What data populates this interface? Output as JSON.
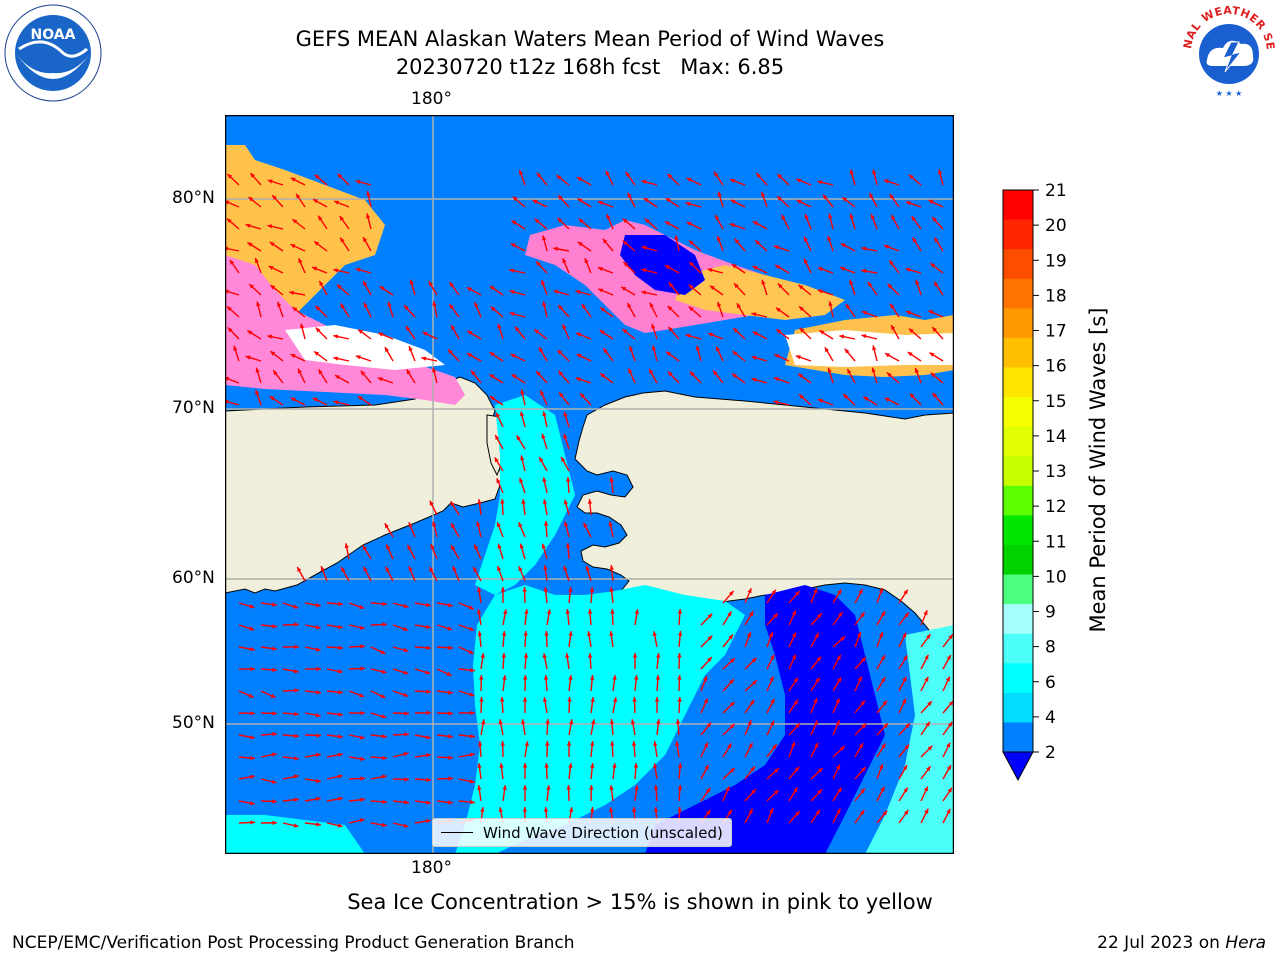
{
  "title": {
    "line1": "GEFS MEAN Alaskan Waters Mean Period of Wind Waves",
    "line2": "20230720 t12z 168h fcst   Max: 6.85"
  },
  "map": {
    "lon_label_top": "180°",
    "lon_label_bottom": "180°",
    "lat_labels": [
      "80°N",
      "70°N",
      "60°N",
      "50°N"
    ],
    "legend_label": "Wind Wave Direction (unscaled)",
    "colors": {
      "land": "#efefdc",
      "coast": "#000000",
      "gridline": "#b0b0b0",
      "arrow": "#ff0000"
    }
  },
  "colorbar": {
    "label": "Mean Period of Wind Waves [s]",
    "ticks": [
      "21",
      "20",
      "19",
      "18",
      "17",
      "16",
      "15",
      "14",
      "13",
      "12",
      "11",
      "10",
      "9",
      "8",
      "6",
      "4",
      "2"
    ],
    "colors_top_to_bottom": [
      "#ff0000",
      "#ff2600",
      "#ff4d00",
      "#ff7300",
      "#ff9900",
      "#ffbf00",
      "#ffe600",
      "#f5ff00",
      "#e1ff00",
      "#c8ff00",
      "#5eff00",
      "#00e600",
      "#00d200",
      "#4cff7e",
      "#a6fffc",
      "#4dfff9",
      "#00ffff",
      "#00ddff",
      "#0080ff"
    ],
    "extend_color": "#0000ff"
  },
  "subtitle": "Sea Ice Concentration > 15% is shown in pink to yellow",
  "footer": {
    "left": "NCEP/EMC/Verification Post Processing Product Generation Branch",
    "right_date": "22 Jul 2023 on ",
    "right_host": "Hera"
  },
  "logos": {
    "noaa_text": "NOAA",
    "nws_text": "NATIONAL WEATHER SERVICE"
  }
}
